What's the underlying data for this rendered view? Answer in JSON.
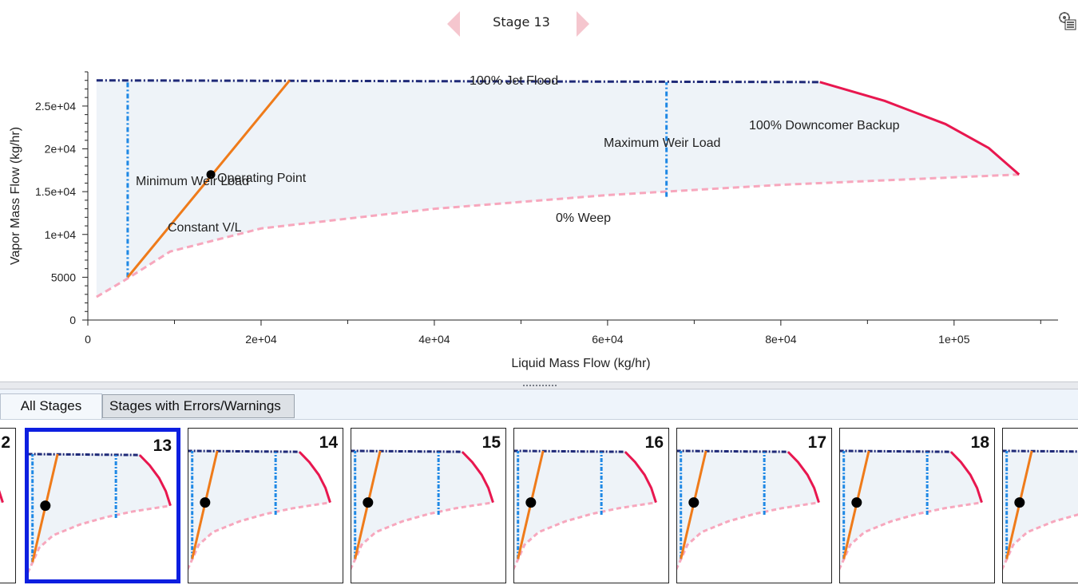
{
  "header": {
    "stage_label": "Stage 13",
    "prev_label": "previous stage",
    "next_label": "next stage"
  },
  "colors": {
    "arrow": "#f5c6ce",
    "region_fill": "#eef3f8",
    "jet_flood": "#1f2a78",
    "downcomer": "#e8174f",
    "weep": "#f7a7bd",
    "weir_load": "#1e88e5",
    "constant_vl": "#ef7b1a",
    "operating_point": "#000000"
  },
  "chart_data": {
    "type": "line",
    "title": "",
    "xlabel": "Liquid Mass Flow (kg/hr)",
    "ylabel": "Vapor Mass Flow (kg/hr)",
    "xlim": [
      0,
      112000
    ],
    "ylim": [
      0,
      29000
    ],
    "x_ticks": [
      {
        "value": 0,
        "label": "0"
      },
      {
        "value": 20000,
        "label": "2e+04"
      },
      {
        "value": 40000,
        "label": "4e+04"
      },
      {
        "value": 60000,
        "label": "6e+04"
      },
      {
        "value": 80000,
        "label": "8e+04"
      },
      {
        "value": 100000,
        "label": "1e+05"
      }
    ],
    "y_ticks": [
      {
        "value": 0,
        "label": "0"
      },
      {
        "value": 5000,
        "label": "5000"
      },
      {
        "value": 10000,
        "label": "1e+04"
      },
      {
        "value": 15000,
        "label": "1.5e+04"
      },
      {
        "value": 20000,
        "label": "2e+04"
      },
      {
        "value": 25000,
        "label": "2.5e+04"
      }
    ],
    "series": [
      {
        "name": "jet_flood",
        "label": "100% Jet Flood",
        "x": [
          1000,
          84500
        ],
        "y": [
          28000,
          27800
        ]
      },
      {
        "name": "downcomer",
        "label": "100% Downcomer Backup",
        "x": [
          84500,
          92000,
          99000,
          104000,
          107500
        ],
        "y": [
          27800,
          25600,
          22900,
          20100,
          17000
        ]
      },
      {
        "name": "weep",
        "label": "0% Weep",
        "x": [
          1000,
          4500,
          9500,
          20000,
          40000,
          60000,
          80000,
          107500
        ],
        "y": [
          2700,
          4800,
          8000,
          10700,
          13000,
          14600,
          15800,
          17000
        ]
      },
      {
        "name": "min_weir",
        "label": "Minimum Weir Load",
        "x": [
          4600,
          4600
        ],
        "y": [
          5000,
          28000
        ]
      },
      {
        "name": "max_weir",
        "label": "Maximum Weir Load",
        "x": [
          66800,
          66800
        ],
        "y": [
          14400,
          27800
        ]
      },
      {
        "name": "constant_vl",
        "label": "Constant V/L",
        "x": [
          4600,
          23300
        ],
        "y": [
          5000,
          28000
        ]
      }
    ],
    "operating_point": {
      "label": "Operating Point",
      "x": 14200,
      "y": 17000
    }
  },
  "tabs": {
    "all_stages": "All Stages",
    "errors": "Stages with Errors/Warnings"
  },
  "thumbnails": [
    {
      "stage": "2"
    },
    {
      "stage": "13"
    },
    {
      "stage": "14"
    },
    {
      "stage": "15"
    },
    {
      "stage": "16"
    },
    {
      "stage": "17"
    },
    {
      "stage": "18"
    },
    {
      "stage": ""
    }
  ]
}
